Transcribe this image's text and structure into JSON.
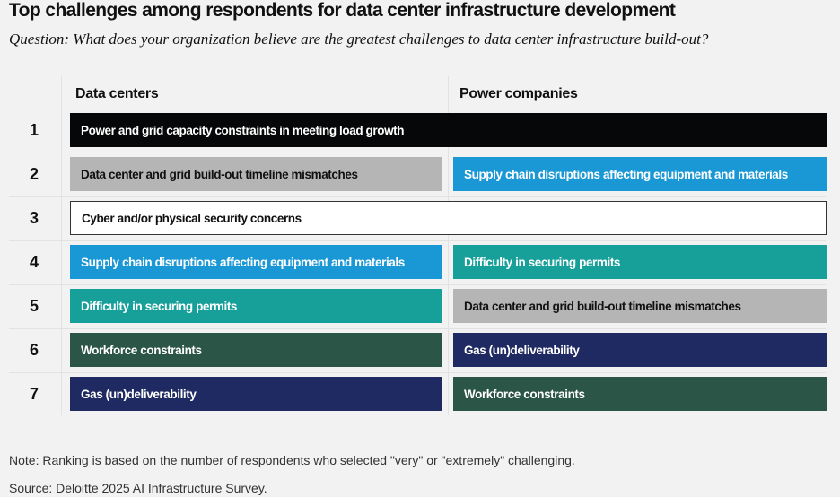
{
  "title": "Top challenges among respondents for data center infrastructure development",
  "question": "Question: What does your organization believe are the greatest challenges to data center infrastructure build-out?",
  "columns": [
    "Data centers",
    "Power companies"
  ],
  "colors": {
    "power_grid": "#050708",
    "timeline": "#b5b5b5",
    "supply_chain": "#1a98d5",
    "security": "#ffffff",
    "permits": "#17a09a",
    "workforce": "#2b5547",
    "gas": "#202a62"
  },
  "rows": [
    {
      "rank": "1",
      "span": true,
      "data_centers": "Power and grid capacity constraints in meeting load growth",
      "dc_key": "power_grid"
    },
    {
      "rank": "2",
      "data_centers": "Data center and grid build-out timeline mismatches",
      "dc_key": "timeline",
      "power_companies": "Supply chain disruptions affecting equipment and materials",
      "pc_key": "supply_chain"
    },
    {
      "rank": "3",
      "span": true,
      "data_centers": "Cyber and/or physical security concerns",
      "dc_key": "security"
    },
    {
      "rank": "4",
      "data_centers": "Supply chain disruptions affecting equipment and materials",
      "dc_key": "supply_chain",
      "power_companies": "Difficulty in securing permits",
      "pc_key": "permits"
    },
    {
      "rank": "5",
      "data_centers": "Difficulty in securing permits",
      "dc_key": "permits",
      "power_companies": "Data center and grid build-out timeline mismatches",
      "pc_key": "timeline"
    },
    {
      "rank": "6",
      "data_centers": "Workforce constraints",
      "dc_key": "workforce",
      "power_companies": "Gas (un)deliverability",
      "pc_key": "gas"
    },
    {
      "rank": "7",
      "data_centers": "Gas (un)deliverability",
      "dc_key": "gas",
      "power_companies": "Workforce constraints",
      "pc_key": "workforce"
    }
  ],
  "note": "Note:  Ranking is based on the number of respondents who selected \"very\" or \"extremely\" challenging.",
  "source": "Source: Deloitte 2025 AI Infrastructure Survey."
}
